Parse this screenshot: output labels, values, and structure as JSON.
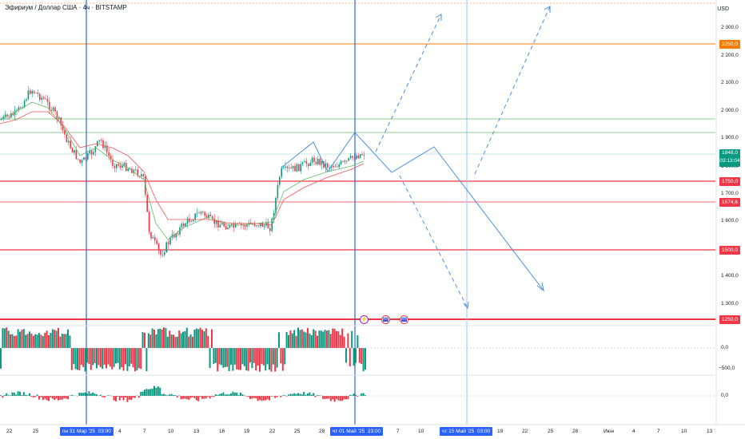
{
  "header": {
    "title": "Эфириум / Доллар США · 4ч · BITSTAMP"
  },
  "price_axis": {
    "unit": "USD",
    "ticks": [
      "2 300,0",
      "2 200,0",
      "2 100,0",
      "2 000,0",
      "1 900,0",
      "1 800,0",
      "1 700,0",
      "1 600,0",
      "1 400,0",
      "1 300,0"
    ]
  },
  "price_labels": {
    "level_2250": "2250,0",
    "current": "1848,0",
    "countdown": "03:13:04",
    "level_1750": "1750,0",
    "level_1674": "1674,6",
    "level_1500": "1500,0",
    "level_1250": "1250,0"
  },
  "indicator_axis": {
    "top_zero": "0,0",
    "top_minus": "−500,0",
    "bottom_zero": "0,0"
  },
  "time_axis": {
    "ticks": [
      "22",
      "25",
      "4",
      "7",
      "10",
      "13",
      "16",
      "19",
      "22",
      "25",
      "28",
      "7",
      "10",
      "19",
      "22",
      "25",
      "28",
      "Июн",
      "4",
      "7",
      "10",
      "13"
    ],
    "badges": [
      "пн 31 Мар '25",
      "03:00",
      "чт 01 Май '25",
      "23:00",
      "чт 15 Май '25",
      "03:00"
    ]
  },
  "event_icons": [
    "lightning-icon",
    "flag-icon",
    "flag-icon"
  ],
  "colors": {
    "accent": "#2962ff",
    "level_red": "#f23645",
    "level_orange": "#f57c00",
    "level_green": "#4caf50",
    "bull": "#089981",
    "bear": "#f23645"
  }
}
